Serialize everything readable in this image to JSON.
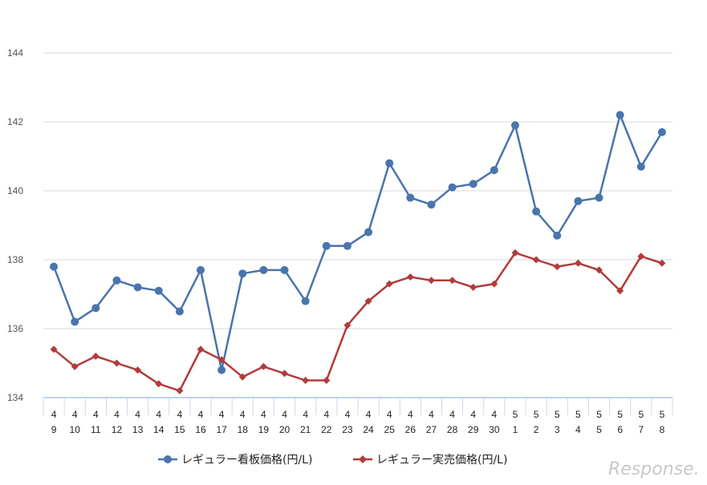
{
  "chart_data": {
    "type": "line",
    "categories": [
      [
        "4",
        "9"
      ],
      [
        "4",
        "10"
      ],
      [
        "4",
        "11"
      ],
      [
        "4",
        "12"
      ],
      [
        "4",
        "13"
      ],
      [
        "4",
        "14"
      ],
      [
        "4",
        "15"
      ],
      [
        "4",
        "16"
      ],
      [
        "4",
        "17"
      ],
      [
        "4",
        "18"
      ],
      [
        "4",
        "19"
      ],
      [
        "4",
        "20"
      ],
      [
        "4",
        "21"
      ],
      [
        "4",
        "22"
      ],
      [
        "4",
        "23"
      ],
      [
        "4",
        "24"
      ],
      [
        "4",
        "25"
      ],
      [
        "4",
        "26"
      ],
      [
        "4",
        "27"
      ],
      [
        "4",
        "28"
      ],
      [
        "4",
        "29"
      ],
      [
        "4",
        "30"
      ],
      [
        "5",
        "1"
      ],
      [
        "5",
        "2"
      ],
      [
        "5",
        "3"
      ],
      [
        "5",
        "4"
      ],
      [
        "5",
        "5"
      ],
      [
        "5",
        "6"
      ],
      [
        "5",
        "7"
      ],
      [
        "5",
        "8"
      ]
    ],
    "series": [
      {
        "name": "レギュラー看板価格(円/L)",
        "color": "#4a74ad",
        "marker": "circle",
        "values": [
          137.8,
          136.2,
          136.6,
          137.4,
          137.2,
          137.1,
          136.5,
          137.7,
          134.8,
          137.6,
          137.7,
          137.7,
          136.8,
          138.4,
          138.4,
          138.8,
          140.8,
          139.8,
          139.6,
          140.1,
          140.2,
          140.6,
          141.9,
          139.4,
          138.7,
          139.7,
          139.8,
          142.2,
          140.7,
          141.7
        ]
      },
      {
        "name": "レギュラー実売価格(円/L)",
        "color": "#b23b3b",
        "marker": "diamond",
        "values": [
          135.4,
          134.9,
          135.2,
          135.0,
          134.8,
          134.4,
          134.2,
          135.4,
          135.1,
          134.6,
          134.9,
          134.7,
          134.5,
          134.5,
          136.1,
          136.8,
          137.3,
          137.5,
          137.4,
          137.4,
          137.2,
          137.3,
          138.2,
          138.0,
          137.8,
          137.9,
          137.7,
          137.1,
          138.1,
          137.9
        ]
      }
    ],
    "yticks": [
      "134",
      "136",
      "138",
      "140",
      "142",
      "144"
    ],
    "ylim": [
      134,
      144
    ],
    "grid": true,
    "legend_position": "bottom",
    "watermark": "Response."
  }
}
